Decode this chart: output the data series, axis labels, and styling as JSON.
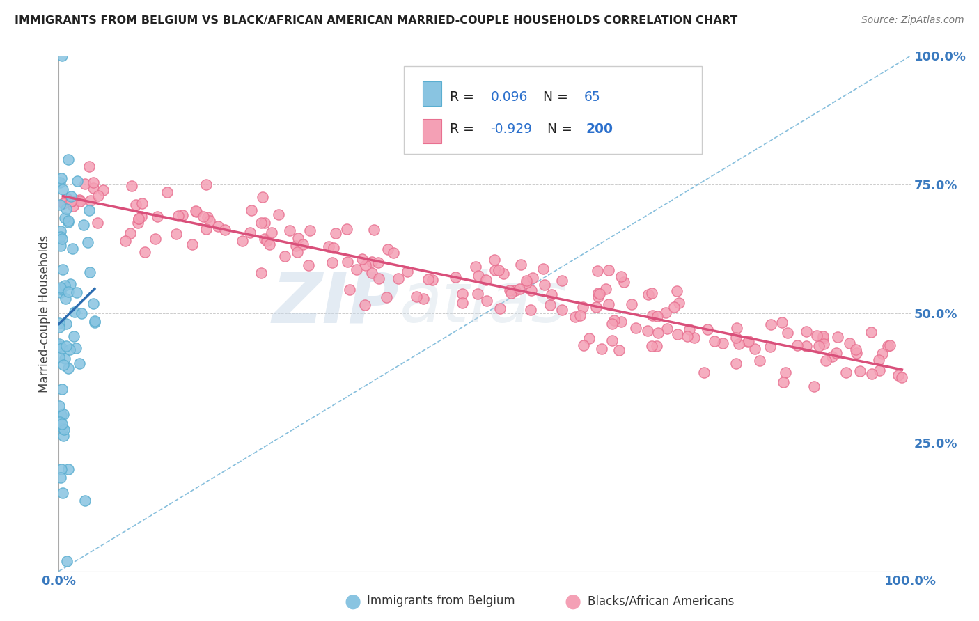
{
  "title": "IMMIGRANTS FROM BELGIUM VS BLACK/AFRICAN AMERICAN MARRIED-COUPLE HOUSEHOLDS CORRELATION CHART",
  "source_text": "Source: ZipAtlas.com",
  "ylabel": "Married-couple Households",
  "axis_label_color": "#3a7abf",
  "title_color": "#222222",
  "source_color": "#777777",
  "blue_color": "#89c4e1",
  "pink_color": "#f4a0b5",
  "blue_edge_color": "#5aaed0",
  "pink_edge_color": "#e87090",
  "blue_line_color": "#2b6cb0",
  "pink_line_color": "#d94f7a",
  "dashed_line_color": "#7ab8d9",
  "grid_color": "#cccccc",
  "background_color": "#ffffff",
  "watermark_zip": "ZIP",
  "watermark_atlas": "atlas",
  "seed": 42,
  "blue_n": 65,
  "pink_n": 200,
  "blue_R": 0.096,
  "pink_R": -0.929,
  "legend_r1_r": "0.096",
  "legend_r1_n": "65",
  "legend_r2_r": "-0.929",
  "legend_r2_n": "200"
}
